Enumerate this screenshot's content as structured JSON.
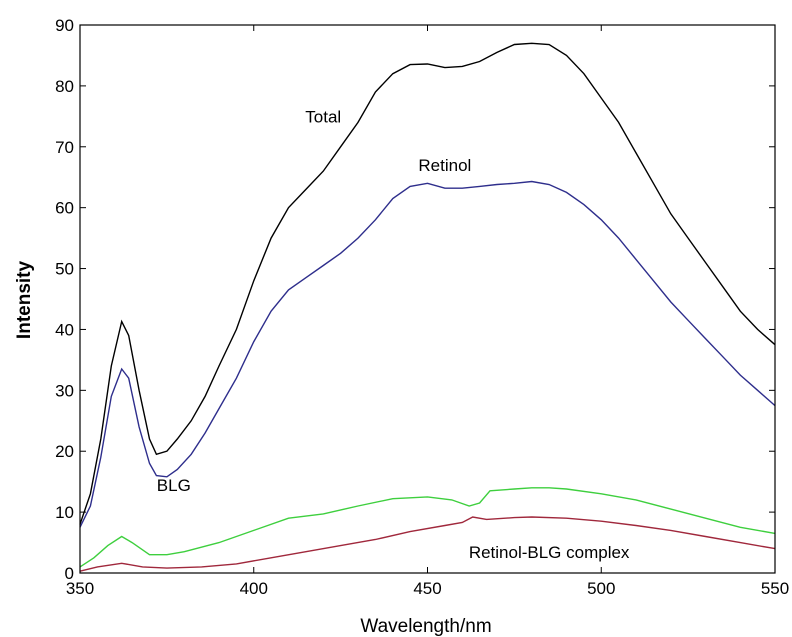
{
  "chart_data": {
    "type": "line",
    "title": "",
    "xlabel": "Wavelength/nm",
    "ylabel": "Intensity",
    "xlim": [
      350,
      550
    ],
    "ylim": [
      0,
      90
    ],
    "xticks": [
      350,
      400,
      450,
      500,
      550
    ],
    "yticks": [
      0,
      10,
      20,
      30,
      40,
      50,
      60,
      70,
      80,
      90
    ],
    "grid": false,
    "series": [
      {
        "name": "Total",
        "color": "#000000",
        "points": [
          [
            350,
            8
          ],
          [
            353,
            13
          ],
          [
            356,
            22
          ],
          [
            359,
            34
          ],
          [
            362,
            41.3
          ],
          [
            364,
            39
          ],
          [
            367,
            30
          ],
          [
            370,
            22
          ],
          [
            372,
            19.5
          ],
          [
            375,
            20
          ],
          [
            378,
            22
          ],
          [
            382,
            25
          ],
          [
            386,
            29
          ],
          [
            390,
            34
          ],
          [
            395,
            40
          ],
          [
            400,
            48
          ],
          [
            405,
            55
          ],
          [
            410,
            60
          ],
          [
            415,
            63
          ],
          [
            420,
            66
          ],
          [
            425,
            70
          ],
          [
            430,
            74
          ],
          [
            435,
            79
          ],
          [
            440,
            82
          ],
          [
            445,
            83.5
          ],
          [
            450,
            83.6
          ],
          [
            455,
            83
          ],
          [
            460,
            83.2
          ],
          [
            465,
            84
          ],
          [
            470,
            85.5
          ],
          [
            475,
            86.8
          ],
          [
            480,
            87
          ],
          [
            485,
            86.8
          ],
          [
            490,
            85
          ],
          [
            495,
            82
          ],
          [
            500,
            78
          ],
          [
            505,
            74
          ],
          [
            510,
            69
          ],
          [
            515,
            64
          ],
          [
            520,
            59
          ],
          [
            525,
            55
          ],
          [
            530,
            51
          ],
          [
            535,
            47
          ],
          [
            540,
            43
          ],
          [
            545,
            40
          ],
          [
            550,
            37.5
          ]
        ]
      },
      {
        "name": "Retinol",
        "color": "#2e2e8c",
        "points": [
          [
            350,
            7.5
          ],
          [
            353,
            11
          ],
          [
            356,
            19
          ],
          [
            359,
            29
          ],
          [
            362,
            33.5
          ],
          [
            364,
            32
          ],
          [
            367,
            24
          ],
          [
            370,
            18
          ],
          [
            372,
            16
          ],
          [
            375,
            15.8
          ],
          [
            378,
            17
          ],
          [
            382,
            19.5
          ],
          [
            386,
            23
          ],
          [
            390,
            27
          ],
          [
            395,
            32
          ],
          [
            400,
            38
          ],
          [
            405,
            43
          ],
          [
            410,
            46.5
          ],
          [
            415,
            48.5
          ],
          [
            420,
            50.5
          ],
          [
            425,
            52.5
          ],
          [
            430,
            55
          ],
          [
            435,
            58
          ],
          [
            440,
            61.5
          ],
          [
            445,
            63.5
          ],
          [
            450,
            64
          ],
          [
            455,
            63.2
          ],
          [
            460,
            63.2
          ],
          [
            465,
            63.5
          ],
          [
            470,
            63.8
          ],
          [
            475,
            64
          ],
          [
            480,
            64.3
          ],
          [
            485,
            63.8
          ],
          [
            490,
            62.5
          ],
          [
            495,
            60.5
          ],
          [
            500,
            58
          ],
          [
            505,
            55
          ],
          [
            510,
            51.5
          ],
          [
            515,
            48
          ],
          [
            520,
            44.5
          ],
          [
            525,
            41.5
          ],
          [
            530,
            38.5
          ],
          [
            535,
            35.5
          ],
          [
            540,
            32.5
          ],
          [
            545,
            30
          ],
          [
            550,
            27.5
          ]
        ]
      },
      {
        "name": "BLG",
        "color": "#3ecf3e",
        "points": [
          [
            350,
            1
          ],
          [
            354,
            2.5
          ],
          [
            358,
            4.5
          ],
          [
            362,
            6
          ],
          [
            365,
            5
          ],
          [
            370,
            3
          ],
          [
            375,
            3
          ],
          [
            380,
            3.5
          ],
          [
            390,
            5
          ],
          [
            400,
            7
          ],
          [
            410,
            9
          ],
          [
            420,
            9.7
          ],
          [
            430,
            11
          ],
          [
            440,
            12.2
          ],
          [
            450,
            12.5
          ],
          [
            457,
            12
          ],
          [
            462,
            11
          ],
          [
            465,
            11.5
          ],
          [
            468,
            13.5
          ],
          [
            475,
            13.8
          ],
          [
            480,
            14
          ],
          [
            485,
            14
          ],
          [
            490,
            13.8
          ],
          [
            500,
            13
          ],
          [
            510,
            12
          ],
          [
            520,
            10.5
          ],
          [
            530,
            9
          ],
          [
            540,
            7.5
          ],
          [
            550,
            6.5
          ]
        ]
      },
      {
        "name": "Retinol-BLG complex",
        "color": "#a0283c",
        "points": [
          [
            350,
            0.3
          ],
          [
            355,
            1
          ],
          [
            362,
            1.6
          ],
          [
            368,
            1
          ],
          [
            375,
            0.8
          ],
          [
            385,
            1
          ],
          [
            395,
            1.5
          ],
          [
            405,
            2.5
          ],
          [
            415,
            3.5
          ],
          [
            425,
            4.5
          ],
          [
            435,
            5.5
          ],
          [
            445,
            6.8
          ],
          [
            455,
            7.8
          ],
          [
            460,
            8.3
          ],
          [
            463,
            9.2
          ],
          [
            467,
            8.8
          ],
          [
            475,
            9.1
          ],
          [
            480,
            9.2
          ],
          [
            490,
            9
          ],
          [
            500,
            8.5
          ],
          [
            510,
            7.8
          ],
          [
            520,
            7
          ],
          [
            530,
            6
          ],
          [
            540,
            5
          ],
          [
            550,
            4
          ]
        ]
      }
    ]
  }
}
